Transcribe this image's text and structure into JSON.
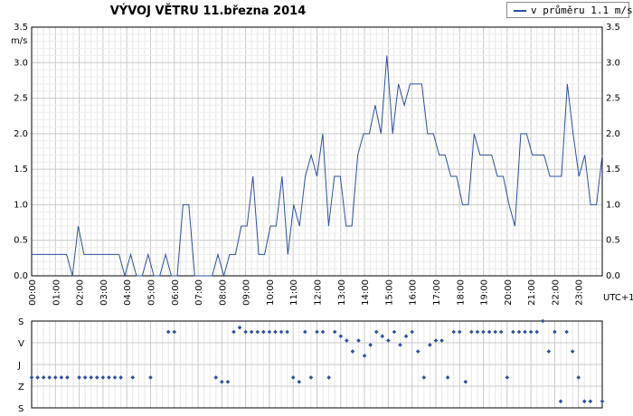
{
  "chart_data": [
    {
      "type": "line",
      "title": "VÝVOJ VĚTRU  11.března 2014",
      "ylabel": "m/s",
      "xlabel": "UTC+1",
      "legend": {
        "label": "v průměru 1.1 m/s",
        "placement": "top-right"
      },
      "ylim": [
        0,
        3.5
      ],
      "xlim": [
        0,
        24
      ],
      "y_ticks": [
        "0.0",
        "0.5",
        "1.0",
        "1.5",
        "2.0",
        "2.5",
        "3.0",
        "3.5"
      ],
      "x_ticks": [
        "00:00",
        "01:00",
        "02:00",
        "03:00",
        "04:00",
        "05:00",
        "06:00",
        "07:00",
        "08:00",
        "09:00",
        "10:00",
        "11:00",
        "12:00",
        "13:00",
        "14:00",
        "15:00",
        "16:00",
        "17:00",
        "18:00",
        "19:00",
        "20:00",
        "21:00",
        "22:00",
        "23:00"
      ],
      "grid": true,
      "series": [
        {
          "color": "#2c4f9e",
          "values": [
            0.3,
            0.3,
            0.3,
            0.3,
            0.3,
            0.3,
            0.3,
            0,
            0.7,
            0.3,
            0.3,
            0.3,
            0.3,
            0.3,
            0.3,
            0.3,
            0,
            0.3,
            0,
            0,
            0.3,
            0,
            0,
            0.3,
            0,
            0,
            1.0,
            1.0,
            0,
            0,
            0,
            0,
            0.3,
            0,
            0.3,
            0.3,
            0.7,
            0.7,
            1.4,
            0.3,
            0.3,
            0.7,
            0.7,
            1.4,
            0.3,
            1.0,
            0.7,
            1.4,
            1.7,
            1.4,
            2.0,
            0.7,
            1.4,
            1.4,
            0.7,
            0.7,
            1.7,
            2.0,
            2.0,
            2.4,
            2.0,
            3.1,
            2.0,
            2.7,
            2.4,
            2.7,
            2.7,
            2.7,
            2.0,
            2.0,
            1.7,
            1.7,
            1.4,
            1.4,
            1.0,
            1.0,
            2.0,
            1.7,
            1.7,
            1.7,
            1.4,
            1.4,
            1.0,
            0.7,
            2.0,
            2.0,
            1.7,
            1.7,
            1.7,
            1.4,
            1.4,
            1.4,
            2.7,
            2.0,
            1.4,
            1.7,
            1.0,
            1.0,
            1.7
          ]
        }
      ]
    },
    {
      "type": "scatter",
      "y_categories": [
        "S",
        "V",
        "J",
        "Z",
        "S"
      ],
      "ylim": [
        0,
        4
      ],
      "xlim": [
        0,
        24
      ],
      "color": "#2c4f9e",
      "points": [
        [
          0.0,
          2.6
        ],
        [
          0.25,
          2.6
        ],
        [
          0.5,
          2.6
        ],
        [
          0.75,
          2.6
        ],
        [
          1.0,
          2.6
        ],
        [
          1.25,
          2.6
        ],
        [
          1.5,
          2.6
        ],
        [
          2.0,
          2.6
        ],
        [
          2.25,
          2.6
        ],
        [
          2.5,
          2.6
        ],
        [
          2.75,
          2.6
        ],
        [
          3.0,
          2.6
        ],
        [
          3.25,
          2.6
        ],
        [
          3.5,
          2.6
        ],
        [
          3.75,
          2.6
        ],
        [
          4.25,
          2.6
        ],
        [
          5.0,
          2.6
        ],
        [
          5.75,
          0.5
        ],
        [
          6.0,
          0.5
        ],
        [
          7.75,
          2.6
        ],
        [
          8.0,
          2.8
        ],
        [
          8.25,
          2.8
        ],
        [
          8.5,
          0.5
        ],
        [
          8.75,
          0.3
        ],
        [
          9.0,
          0.5
        ],
        [
          9.25,
          0.5
        ],
        [
          9.5,
          0.5
        ],
        [
          9.75,
          0.5
        ],
        [
          10.0,
          0.5
        ],
        [
          10.25,
          0.5
        ],
        [
          10.5,
          0.5
        ],
        [
          10.75,
          0.5
        ],
        [
          11.0,
          2.6
        ],
        [
          11.25,
          2.8
        ],
        [
          11.5,
          0.5
        ],
        [
          11.75,
          2.6
        ],
        [
          12.0,
          0.5
        ],
        [
          12.25,
          0.5
        ],
        [
          12.5,
          2.6
        ],
        [
          12.75,
          0.5
        ],
        [
          13.0,
          0.7
        ],
        [
          13.25,
          0.9
        ],
        [
          13.5,
          1.4
        ],
        [
          13.75,
          0.9
        ],
        [
          14.0,
          1.6
        ],
        [
          14.25,
          1.1
        ],
        [
          14.5,
          0.5
        ],
        [
          14.75,
          0.7
        ],
        [
          15.0,
          0.9
        ],
        [
          15.25,
          0.5
        ],
        [
          15.5,
          1.1
        ],
        [
          15.75,
          0.7
        ],
        [
          16.0,
          0.5
        ],
        [
          16.25,
          1.4
        ],
        [
          16.5,
          2.6
        ],
        [
          16.75,
          1.1
        ],
        [
          17.0,
          0.9
        ],
        [
          17.25,
          0.9
        ],
        [
          17.5,
          2.6
        ],
        [
          17.75,
          0.5
        ],
        [
          18.0,
          0.5
        ],
        [
          18.25,
          2.8
        ],
        [
          18.5,
          0.5
        ],
        [
          18.75,
          0.5
        ],
        [
          19.0,
          0.5
        ],
        [
          19.25,
          0.5
        ],
        [
          19.5,
          0.5
        ],
        [
          19.75,
          0.5
        ],
        [
          20.0,
          2.6
        ],
        [
          20.25,
          0.5
        ],
        [
          20.5,
          0.5
        ],
        [
          20.75,
          0.5
        ],
        [
          21.0,
          0.5
        ],
        [
          21.25,
          0.5
        ],
        [
          21.5,
          0.0
        ],
        [
          21.75,
          1.4
        ],
        [
          22.0,
          0.5
        ],
        [
          22.25,
          3.7
        ],
        [
          22.5,
          0.5
        ],
        [
          22.75,
          1.4
        ],
        [
          23.0,
          2.6
        ],
        [
          23.25,
          3.7
        ],
        [
          23.5,
          3.7
        ],
        [
          24.0,
          3.7
        ]
      ]
    }
  ]
}
